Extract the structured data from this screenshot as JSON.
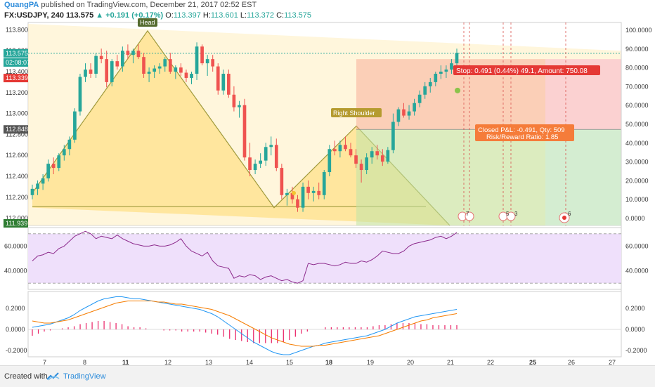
{
  "header": {
    "author": "QuangPA",
    "published": "published on TradingView.com, December 21, 2017 02:52 EST",
    "symbol": "FX:USDJPY, 240",
    "last": "113.575",
    "change": "+0.191 (+0.17%)",
    "o_label": "O:",
    "o": "113.397",
    "h_label": "H:",
    "h": "113.601",
    "l_label": "L:",
    "l": "113.372",
    "c_label": "C:",
    "c": "113.575"
  },
  "footer": {
    "created_with": "Created with",
    "brand": "TradingView"
  },
  "colors": {
    "up": "#26a69a",
    "down": "#ef5350",
    "hs_fill": "#ffd86b",
    "hs_line": "#a09a3c",
    "rsi_bg": "#efe0fb",
    "rsi_line": "#8c2a8c",
    "macd": "#2196f3",
    "signal": "#f57c00",
    "hist": "#e91e63"
  },
  "chart_data": [
    {
      "type": "candlestick",
      "title": "FX:USDJPY, 240",
      "x_ticks": [
        "7",
        "8",
        "11",
        "12",
        "13",
        "14",
        "15",
        "18",
        "19",
        "20",
        "21",
        "22",
        "25",
        "26",
        "27"
      ],
      "y_ticks": [
        "113.800",
        "113.600",
        "113.400",
        "113.200",
        "113.000",
        "112.800",
        "112.600",
        "112.400",
        "112.200",
        "112.000"
      ],
      "ylim": [
        111.93,
        113.87
      ],
      "candles": [
        [
          112.22,
          112.32,
          112.18,
          112.28
        ],
        [
          112.28,
          112.36,
          112.22,
          112.33
        ],
        [
          112.33,
          112.42,
          112.27,
          112.38
        ],
        [
          112.38,
          112.56,
          112.35,
          112.52
        ],
        [
          112.52,
          112.58,
          112.42,
          112.48
        ],
        [
          112.48,
          112.62,
          112.45,
          112.6
        ],
        [
          112.6,
          112.7,
          112.55,
          112.66
        ],
        [
          112.66,
          112.78,
          112.6,
          112.75
        ],
        [
          112.75,
          113.05,
          112.72,
          113.02
        ],
        [
          113.02,
          113.38,
          112.98,
          113.35
        ],
        [
          113.35,
          113.48,
          113.3,
          113.42
        ],
        [
          113.42,
          113.48,
          113.34,
          113.38
        ],
        [
          113.38,
          113.58,
          113.34,
          113.55
        ],
        [
          113.55,
          113.62,
          113.48,
          113.52
        ],
        [
          113.52,
          113.6,
          113.25,
          113.3
        ],
        [
          113.3,
          113.52,
          113.26,
          113.5
        ],
        [
          113.5,
          113.56,
          113.42,
          113.45
        ],
        [
          113.45,
          113.64,
          113.4,
          113.6
        ],
        [
          113.6,
          113.66,
          113.52,
          113.56
        ],
        [
          113.56,
          113.62,
          113.48,
          113.6
        ],
        [
          113.6,
          113.66,
          113.52,
          113.54
        ],
        [
          113.54,
          113.58,
          113.34,
          113.38
        ],
        [
          113.38,
          113.44,
          113.3,
          113.4
        ],
        [
          113.4,
          113.46,
          113.34,
          113.43
        ],
        [
          113.43,
          113.48,
          113.38,
          113.45
        ],
        [
          113.45,
          113.54,
          113.4,
          113.52
        ],
        [
          113.52,
          113.58,
          113.38,
          113.4
        ],
        [
          113.4,
          113.46,
          113.33,
          113.44
        ],
        [
          113.44,
          113.48,
          113.36,
          113.39
        ],
        [
          113.39,
          113.42,
          113.3,
          113.34
        ],
        [
          113.34,
          113.4,
          113.28,
          113.38
        ],
        [
          113.38,
          113.68,
          113.32,
          113.64
        ],
        [
          113.64,
          113.66,
          113.46,
          113.48
        ],
        [
          113.48,
          113.56,
          113.36,
          113.52
        ],
        [
          113.52,
          113.56,
          113.4,
          113.45
        ],
        [
          113.45,
          113.48,
          113.18,
          113.22
        ],
        [
          113.22,
          113.42,
          113.18,
          113.38
        ],
        [
          113.38,
          113.42,
          113.15,
          113.18
        ],
        [
          113.18,
          113.26,
          113.02,
          113.06
        ],
        [
          113.06,
          113.12,
          112.96,
          113.08
        ],
        [
          113.08,
          113.14,
          112.55,
          112.58
        ],
        [
          112.58,
          112.72,
          112.4,
          112.46
        ],
        [
          112.46,
          112.56,
          112.42,
          112.52
        ],
        [
          112.52,
          112.62,
          112.48,
          112.55
        ],
        [
          112.55,
          112.72,
          112.5,
          112.68
        ],
        [
          112.68,
          112.78,
          112.6,
          112.7
        ],
        [
          112.7,
          112.76,
          112.45,
          112.48
        ],
        [
          112.48,
          112.52,
          112.18,
          112.22
        ],
        [
          112.22,
          112.28,
          112.12,
          112.24
        ],
        [
          112.24,
          112.3,
          112.14,
          112.18
        ],
        [
          112.18,
          112.22,
          112.06,
          112.1
        ],
        [
          112.1,
          112.34,
          112.06,
          112.3
        ],
        [
          112.3,
          112.36,
          112.18,
          112.24
        ],
        [
          112.24,
          112.3,
          112.16,
          112.26
        ],
        [
          112.26,
          112.34,
          112.18,
          112.22
        ],
        [
          112.22,
          112.46,
          112.18,
          112.44
        ],
        [
          112.44,
          112.7,
          112.4,
          112.66
        ],
        [
          112.66,
          112.74,
          112.6,
          112.64
        ],
        [
          112.64,
          112.74,
          112.58,
          112.7
        ],
        [
          112.7,
          112.78,
          112.64,
          112.66
        ],
        [
          112.66,
          112.72,
          112.58,
          112.6
        ],
        [
          112.6,
          112.66,
          112.48,
          112.52
        ],
        [
          112.52,
          112.56,
          112.34,
          112.46
        ],
        [
          112.46,
          112.62,
          112.42,
          112.58
        ],
        [
          112.58,
          112.68,
          112.52,
          112.64
        ],
        [
          112.64,
          112.7,
          112.56,
          112.6
        ],
        [
          112.6,
          112.66,
          112.5,
          112.54
        ],
        [
          112.54,
          112.68,
          112.52,
          112.65
        ],
        [
          112.65,
          113.0,
          112.62,
          112.92
        ],
        [
          112.92,
          113.06,
          112.88,
          113.04
        ],
        [
          113.04,
          113.1,
          112.96,
          112.98
        ],
        [
          112.98,
          113.08,
          112.94,
          113.02
        ],
        [
          113.02,
          113.14,
          112.98,
          113.1
        ],
        [
          113.1,
          113.22,
          113.06,
          113.18
        ],
        [
          113.18,
          113.3,
          113.14,
          113.26
        ],
        [
          113.26,
          113.34,
          113.2,
          113.3
        ],
        [
          113.3,
          113.4,
          113.26,
          113.38
        ],
        [
          113.38,
          113.46,
          113.33,
          113.4
        ],
        [
          113.4,
          113.46,
          113.34,
          113.42
        ],
        [
          113.42,
          113.52,
          113.38,
          113.48
        ],
        [
          113.48,
          113.62,
          113.44,
          113.58
        ]
      ]
    },
    {
      "type": "line",
      "title": "RSI",
      "y_ticks": [
        "60.0000",
        "40.0000"
      ],
      "ylim": [
        25,
        75
      ],
      "values": [
        48,
        52,
        53,
        55,
        54,
        58,
        60,
        64,
        68,
        70,
        72,
        70,
        66,
        68,
        67,
        66,
        69,
        66,
        64,
        62,
        61,
        60,
        60,
        61,
        60,
        60,
        61,
        63,
        66,
        60,
        56,
        54,
        52,
        55,
        48,
        44,
        43,
        42,
        34,
        36,
        35,
        37,
        36,
        33,
        35,
        36,
        34,
        32,
        33,
        31,
        30,
        32,
        46,
        45,
        46,
        46,
        45,
        44,
        45,
        47,
        46,
        46,
        48,
        47,
        49,
        52,
        56,
        55,
        54,
        54,
        56,
        60,
        62,
        63,
        64,
        65,
        67,
        68,
        66,
        68,
        71
      ]
    },
    {
      "type": "line",
      "title": "MACD",
      "y_ticks": [
        "0.2000",
        "0.0000",
        "-0.2000"
      ],
      "ylim": [
        -0.26,
        0.36
      ],
      "series": [
        {
          "name": "MACD",
          "values": [
            0.02,
            0.03,
            0.04,
            0.05,
            0.07,
            0.09,
            0.11,
            0.14,
            0.18,
            0.21,
            0.24,
            0.27,
            0.29,
            0.3,
            0.31,
            0.31,
            0.3,
            0.29,
            0.29,
            0.28,
            0.27,
            0.26,
            0.25,
            0.24,
            0.23,
            0.22,
            0.21,
            0.2,
            0.19,
            0.17,
            0.15,
            0.12,
            0.08,
            0.04,
            0.0,
            -0.04,
            -0.08,
            -0.12,
            -0.15,
            -0.18,
            -0.21,
            -0.23,
            -0.24,
            -0.24,
            -0.22,
            -0.2,
            -0.18,
            -0.16,
            -0.15,
            -0.13,
            -0.12,
            -0.11,
            -0.1,
            -0.09,
            -0.08,
            -0.07,
            -0.06,
            -0.04,
            -0.02,
            0.0,
            0.03,
            0.06,
            0.08,
            0.1,
            0.12,
            0.13,
            0.14,
            0.15,
            0.16,
            0.17,
            0.18,
            0.19
          ]
        },
        {
          "name": "Signal",
          "values": [
            0.08,
            0.07,
            0.06,
            0.06,
            0.07,
            0.08,
            0.09,
            0.11,
            0.13,
            0.15,
            0.17,
            0.19,
            0.21,
            0.23,
            0.25,
            0.26,
            0.27,
            0.27,
            0.27,
            0.27,
            0.27,
            0.26,
            0.26,
            0.25,
            0.24,
            0.24,
            0.23,
            0.22,
            0.21,
            0.2,
            0.19,
            0.17,
            0.15,
            0.13,
            0.1,
            0.07,
            0.04,
            0.01,
            -0.02,
            -0.05,
            -0.08,
            -0.1,
            -0.12,
            -0.14,
            -0.15,
            -0.16,
            -0.16,
            -0.16,
            -0.15,
            -0.15,
            -0.14,
            -0.13,
            -0.12,
            -0.11,
            -0.1,
            -0.09,
            -0.08,
            -0.07,
            -0.06,
            -0.04,
            -0.02,
            0.0,
            0.02,
            0.04,
            0.06,
            0.08,
            0.09,
            0.11,
            0.12,
            0.13,
            0.14,
            0.15
          ]
        },
        {
          "name": "Histogram",
          "values": [
            -0.06,
            -0.04,
            -0.02,
            -0.01,
            0.0,
            0.01,
            0.02,
            0.03,
            0.05,
            0.06,
            0.07,
            0.08,
            0.08,
            0.07,
            0.06,
            0.05,
            0.03,
            0.02,
            0.02,
            0.01,
            0.0,
            0.0,
            -0.01,
            -0.01,
            -0.01,
            -0.02,
            -0.02,
            -0.02,
            -0.02,
            -0.03,
            -0.04,
            -0.05,
            -0.07,
            -0.09,
            -0.1,
            -0.11,
            -0.12,
            -0.13,
            -0.13,
            -0.13,
            -0.13,
            -0.13,
            -0.12,
            -0.1,
            -0.07,
            -0.04,
            -0.02,
            0.0,
            0.0,
            0.02,
            0.02,
            0.02,
            0.02,
            0.02,
            0.02,
            0.02,
            0.02,
            0.03,
            0.04,
            0.04,
            0.05,
            0.06,
            0.06,
            0.06,
            0.06,
            0.05,
            0.05,
            0.04,
            0.04,
            0.04,
            0.04,
            0.04
          ]
        }
      ]
    }
  ],
  "right_axis_labels": [
    "100.0000",
    "90.0000",
    "80.0000",
    "70.0000",
    "60.0000",
    "50.0000",
    "40.0000",
    "30.0000",
    "20.0000",
    "10.0000",
    "0.0000"
  ],
  "price_tags": {
    "last": "113.575",
    "countdown": "02:08:07",
    "stop": "113.339",
    "entry": "112.848",
    "bottom": "111.939"
  },
  "annotations": {
    "head": "Head",
    "right_shoulder": "Right Shoulder",
    "stop_box": "Stop: 0.491 (0.44%) 49.1, Amount: 750.08",
    "closed_pl": "Closed P&L: -0.491, Qty: 509",
    "risk_reward": "Risk/Reward Ratio: 1.85",
    "event_badges": [
      "7",
      "5",
      "3",
      "6"
    ]
  }
}
